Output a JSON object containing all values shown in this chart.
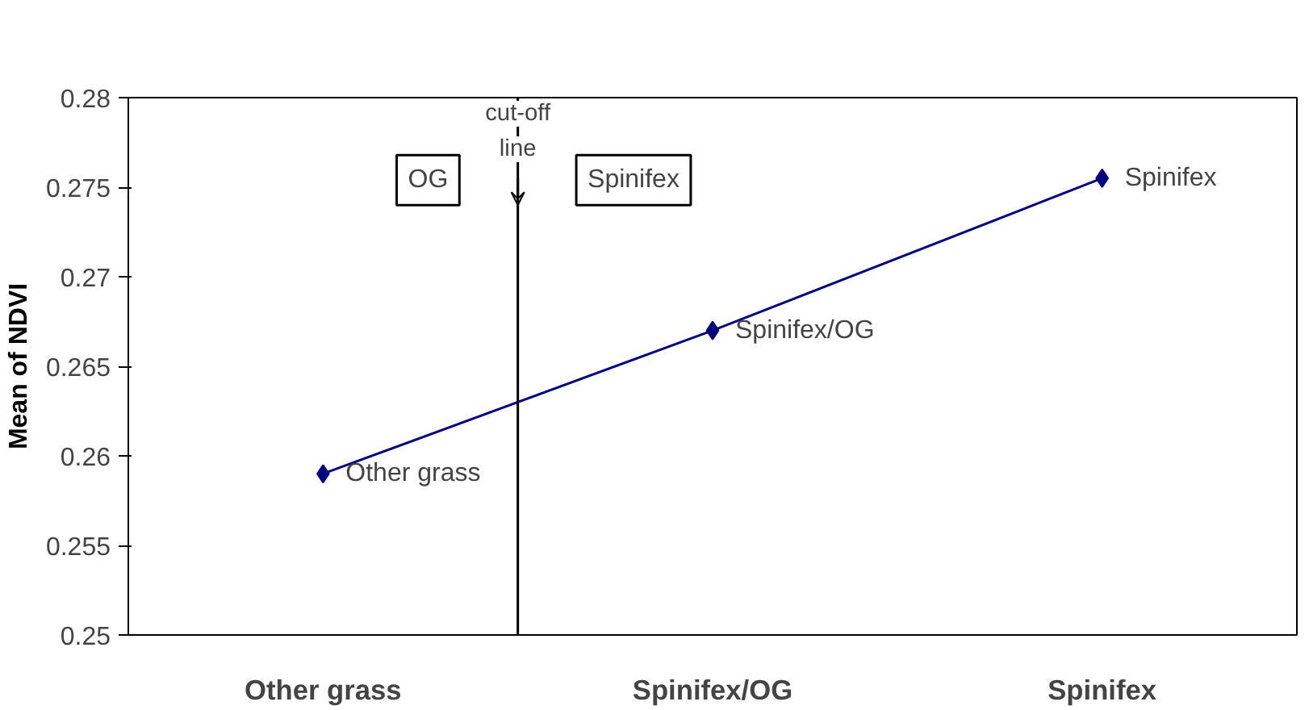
{
  "chart_data": {
    "type": "line",
    "ylabel": "Mean of NDVI",
    "categories": [
      "Other grass",
      "Spinifex/OG",
      "Spinifex"
    ],
    "series": [
      {
        "color": "#000080",
        "values": [
          0.259,
          0.267,
          0.2755
        ]
      }
    ],
    "marker": "diamond",
    "line_style": "solid",
    "grid": false,
    "ylim": [
      0.25,
      0.28
    ],
    "yticks": [
      0.25,
      0.255,
      0.26,
      0.265,
      0.27,
      0.275,
      0.28
    ],
    "annotations": [
      "cut-off line",
      "OG",
      "Spinifex",
      {
        "text": "Other grass",
        "x": "Other grass",
        "y": 0.259
      },
      {
        "text": "Spinifex/OG",
        "x": "Spinifex/OG",
        "y": 0.267
      },
      {
        "text": "Spinifex",
        "x": "Spinifex",
        "y": 0.2755
      }
    ]
  }
}
